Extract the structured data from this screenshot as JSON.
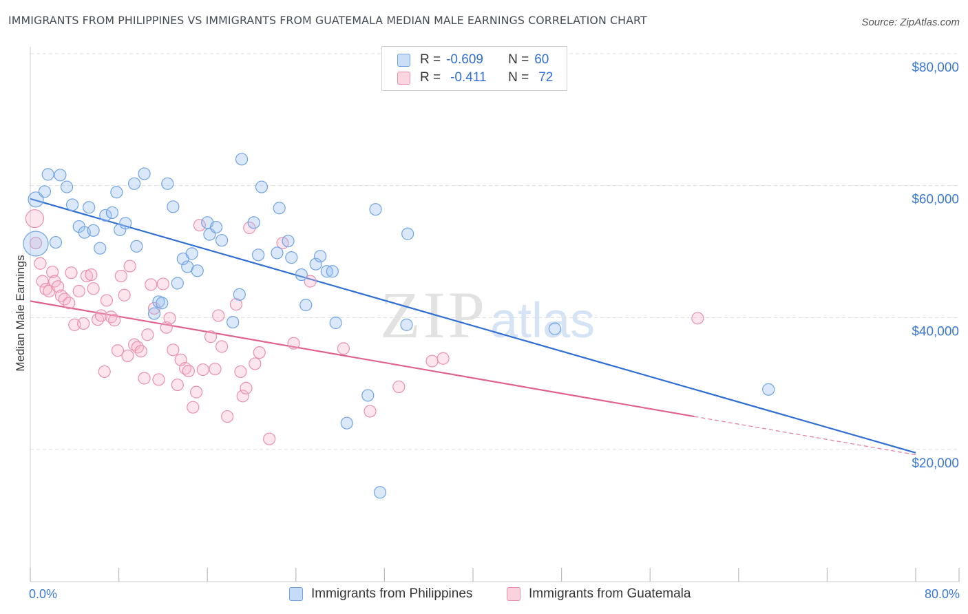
{
  "title": "IMMIGRANTS FROM PHILIPPINES VS IMMIGRANTS FROM GUATEMALA MEDIAN MALE EARNINGS CORRELATION CHART",
  "source": "Source: ZipAtlas.com",
  "watermark": {
    "zip": "ZIP",
    "atlas": "atlas"
  },
  "colors": {
    "blue": "#6fa3e6",
    "blue_fill": "rgba(150,190,240,0.35)",
    "blue_line": "#2f6fd4",
    "pink": "#ea8fae",
    "pink_fill": "rgba(245,180,200,0.35)",
    "pink_line": "#e0608e",
    "axis_text": "#3a78d4",
    "grid": "#dddddd"
  },
  "legend": {
    "rows": [
      {
        "r_label": "R =",
        "r_value": "-0.609",
        "n_label": "N =",
        "n_value": "60"
      },
      {
        "r_label": "R =",
        "r_value": "-0.411",
        "n_label": "N =",
        "n_value": "72"
      }
    ]
  },
  "chart_data": {
    "type": "scatter",
    "title": "IMMIGRANTS FROM PHILIPPINES VS IMMIGRANTS FROM GUATEMALA MEDIAN MALE EARNINGS CORRELATION CHART",
    "xlabel": "",
    "ylabel": "Median Male Earnings",
    "xlim": [
      0,
      80
    ],
    "ylim": [
      0,
      82000
    ],
    "x_tick_labels": [
      "0.0%",
      "80.0%"
    ],
    "y_ticks": [
      20000,
      40000,
      60000,
      80000
    ],
    "y_tick_labels": [
      "$20,000",
      "$40,000",
      "$60,000",
      "$80,000"
    ],
    "grid": true,
    "legend_position": "bottom",
    "series": [
      {
        "name": "Immigrants from Philippines",
        "color": "#6fa3e6",
        "trend": {
          "x": [
            0,
            80
          ],
          "y": [
            58000,
            19500
          ]
        },
        "points": [
          [
            0.5,
            57900
          ],
          [
            1.3,
            59100
          ],
          [
            1.6,
            61700
          ],
          [
            2.7,
            61600
          ],
          [
            3.3,
            59800
          ],
          [
            2.3,
            51400
          ],
          [
            3.8,
            57100
          ],
          [
            4.4,
            53800
          ],
          [
            4.9,
            52900
          ],
          [
            5.3,
            56700
          ],
          [
            5.7,
            53200
          ],
          [
            6.3,
            50500
          ],
          [
            6.8,
            55500
          ],
          [
            7.4,
            55900
          ],
          [
            7.8,
            59000
          ],
          [
            8.1,
            53300
          ],
          [
            8.6,
            54300
          ],
          [
            9.6,
            50800
          ],
          [
            9.4,
            60300
          ],
          [
            10.3,
            61800
          ],
          [
            11.2,
            40600
          ],
          [
            11.6,
            42400
          ],
          [
            11.9,
            42200
          ],
          [
            12.4,
            60300
          ],
          [
            12.9,
            56800
          ],
          [
            13.3,
            45200
          ],
          [
            13.8,
            48900
          ],
          [
            14.2,
            47700
          ],
          [
            14.6,
            49700
          ],
          [
            15.1,
            47100
          ],
          [
            16.0,
            54400
          ],
          [
            16.2,
            52600
          ],
          [
            16.8,
            53700
          ],
          [
            17.3,
            51700
          ],
          [
            18.3,
            39300
          ],
          [
            18.9,
            43500
          ],
          [
            19.1,
            64000
          ],
          [
            20.2,
            54400
          ],
          [
            20.6,
            49500
          ],
          [
            20.9,
            59800
          ],
          [
            22.3,
            49800
          ],
          [
            22.5,
            56600
          ],
          [
            23.3,
            51600
          ],
          [
            23.6,
            49100
          ],
          [
            24.5,
            46500
          ],
          [
            24.9,
            41900
          ],
          [
            25.8,
            48100
          ],
          [
            26.2,
            49300
          ],
          [
            26.8,
            47000
          ],
          [
            27.3,
            47000
          ],
          [
            27.6,
            39200
          ],
          [
            28.6,
            24000
          ],
          [
            30.5,
            28200
          ],
          [
            31.2,
            56400
          ],
          [
            31.6,
            13500
          ],
          [
            34.0,
            38900
          ],
          [
            34.1,
            52700
          ],
          [
            47.4,
            38300
          ],
          [
            66.7,
            29100
          ],
          [
            0.5,
            51200
          ]
        ]
      },
      {
        "name": "Immigrants from Guatemala",
        "color": "#ea8fae",
        "trend": {
          "x": [
            0,
            60
          ],
          "y": [
            42500,
            25000
          ]
        },
        "trend_dashed": {
          "x": [
            60,
            80
          ],
          "y": [
            25000,
            19200
          ]
        },
        "points": [
          [
            0.4,
            55000
          ],
          [
            0.5,
            51300
          ],
          [
            0.9,
            48200
          ],
          [
            1.1,
            45500
          ],
          [
            1.4,
            44300
          ],
          [
            1.7,
            44000
          ],
          [
            2.0,
            46900
          ],
          [
            2.2,
            45500
          ],
          [
            2.5,
            44700
          ],
          [
            2.8,
            43300
          ],
          [
            3.1,
            42800
          ],
          [
            3.5,
            42200
          ],
          [
            3.7,
            46800
          ],
          [
            4.0,
            38900
          ],
          [
            4.4,
            44000
          ],
          [
            4.8,
            39100
          ],
          [
            5.1,
            46300
          ],
          [
            5.5,
            46500
          ],
          [
            5.7,
            44400
          ],
          [
            6.1,
            39700
          ],
          [
            6.4,
            40300
          ],
          [
            6.7,
            31800
          ],
          [
            6.9,
            42600
          ],
          [
            7.3,
            40100
          ],
          [
            7.6,
            39600
          ],
          [
            7.9,
            35000
          ],
          [
            8.2,
            46300
          ],
          [
            8.5,
            43400
          ],
          [
            8.8,
            34200
          ],
          [
            9.0,
            47800
          ],
          [
            9.4,
            35900
          ],
          [
            9.7,
            35500
          ],
          [
            10.0,
            34900
          ],
          [
            10.3,
            30800
          ],
          [
            10.6,
            37400
          ],
          [
            10.9,
            45000
          ],
          [
            11.2,
            41400
          ],
          [
            11.6,
            30600
          ],
          [
            12.0,
            45100
          ],
          [
            12.3,
            38500
          ],
          [
            12.6,
            39900
          ],
          [
            12.9,
            35100
          ],
          [
            13.3,
            29800
          ],
          [
            13.6,
            33600
          ],
          [
            14.0,
            32300
          ],
          [
            14.3,
            31900
          ],
          [
            14.7,
            26400
          ],
          [
            15.0,
            28700
          ],
          [
            15.3,
            54000
          ],
          [
            15.6,
            32100
          ],
          [
            16.3,
            37100
          ],
          [
            16.7,
            32200
          ],
          [
            17.0,
            40300
          ],
          [
            17.3,
            35600
          ],
          [
            17.8,
            25000
          ],
          [
            18.6,
            42000
          ],
          [
            19.0,
            31800
          ],
          [
            19.2,
            28100
          ],
          [
            19.5,
            29300
          ],
          [
            19.8,
            53600
          ],
          [
            20.3,
            33000
          ],
          [
            20.7,
            34700
          ],
          [
            21.6,
            21600
          ],
          [
            22.8,
            51300
          ],
          [
            23.8,
            36100
          ],
          [
            25.3,
            45500
          ],
          [
            28.3,
            35300
          ],
          [
            30.7,
            25800
          ],
          [
            33.3,
            29500
          ],
          [
            36.3,
            33400
          ],
          [
            37.3,
            33800
          ],
          [
            60.3,
            39900
          ]
        ]
      }
    ]
  },
  "bottom_legend": {
    "items": [
      "Immigrants from Philippines",
      "Immigrants from Guatemala"
    ]
  },
  "x_axis": {
    "left_label": "0.0%",
    "right_label": "80.0%"
  }
}
